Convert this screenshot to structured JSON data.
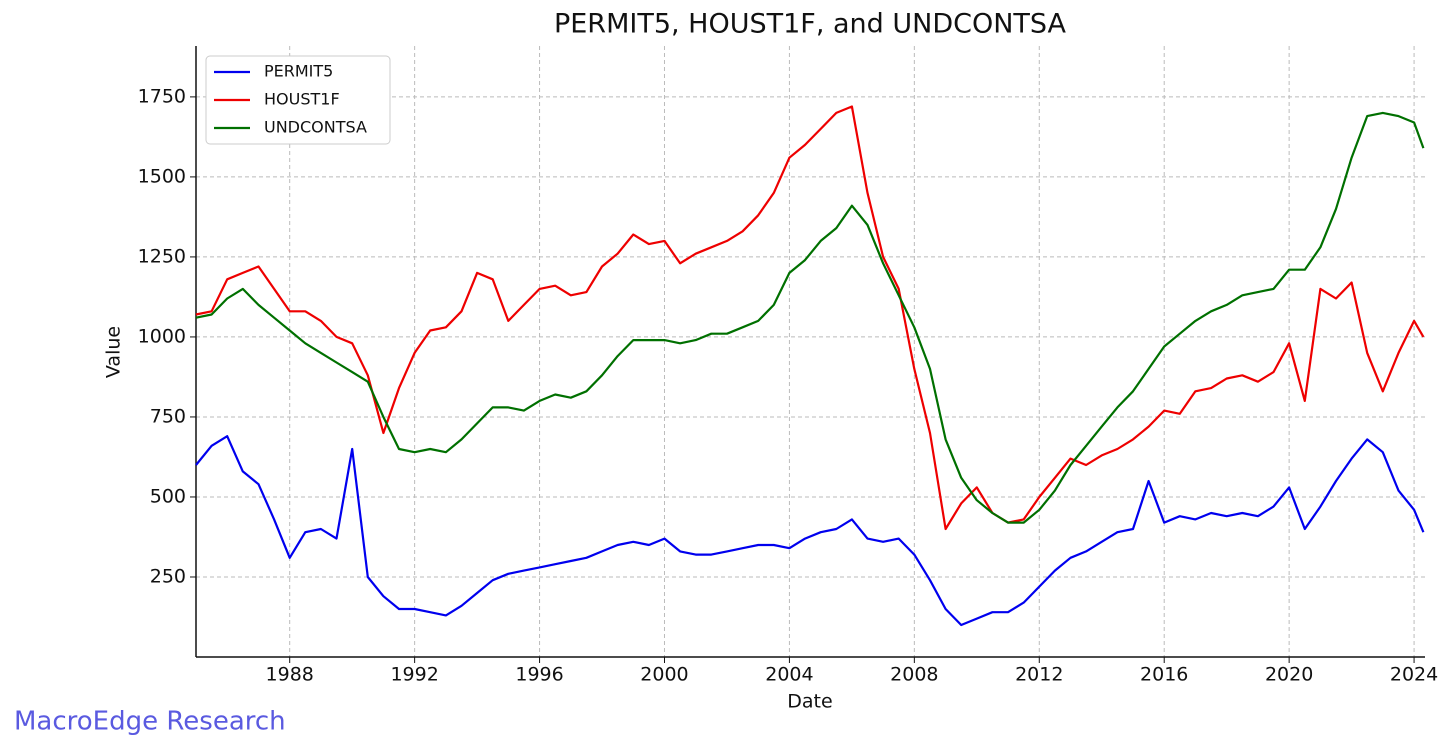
{
  "chart_data": {
    "type": "line",
    "title": "PERMIT5, HOUST1F, and UNDCONTSA",
    "x_label": "Date",
    "y_label": "Value",
    "watermark": "MacroEdge Research",
    "x": [
      1985.0,
      1985.5,
      1986.0,
      1986.5,
      1987.0,
      1987.5,
      1988.0,
      1988.5,
      1989.0,
      1989.5,
      1990.0,
      1990.5,
      1991.0,
      1991.5,
      1992.0,
      1992.5,
      1993.0,
      1993.5,
      1994.0,
      1994.5,
      1995.0,
      1995.5,
      1996.0,
      1996.5,
      1997.0,
      1997.5,
      1998.0,
      1998.5,
      1999.0,
      1999.5,
      2000.0,
      2000.5,
      2001.0,
      2001.5,
      2002.0,
      2002.5,
      2003.0,
      2003.5,
      2004.0,
      2004.5,
      2005.0,
      2005.5,
      2006.0,
      2006.5,
      2007.0,
      2007.5,
      2008.0,
      2008.5,
      2009.0,
      2009.5,
      2010.0,
      2010.5,
      2011.0,
      2011.5,
      2012.0,
      2012.5,
      2013.0,
      2013.5,
      2014.0,
      2014.5,
      2015.0,
      2015.5,
      2016.0,
      2016.5,
      2017.0,
      2017.5,
      2018.0,
      2018.5,
      2019.0,
      2019.5,
      2020.0,
      2020.5,
      2021.0,
      2021.5,
      2022.0,
      2022.5,
      2023.0,
      2023.5,
      2024.0,
      2024.3
    ],
    "series": [
      {
        "name": "PERMIT5",
        "color": "#0000ee",
        "values": [
          600,
          660,
          690,
          580,
          540,
          430,
          310,
          390,
          400,
          370,
          650,
          250,
          190,
          150,
          150,
          140,
          130,
          160,
          200,
          240,
          260,
          270,
          280,
          290,
          300,
          310,
          330,
          350,
          360,
          350,
          370,
          330,
          320,
          320,
          330,
          340,
          350,
          350,
          340,
          370,
          390,
          400,
          430,
          370,
          360,
          370,
          320,
          240,
          150,
          100,
          120,
          140,
          140,
          170,
          220,
          270,
          310,
          330,
          360,
          390,
          400,
          550,
          420,
          440,
          430,
          450,
          440,
          450,
          440,
          470,
          530,
          400,
          470,
          550,
          620,
          680,
          640,
          520,
          460,
          390
        ]
      },
      {
        "name": "HOUST1F",
        "color": "#ee0000",
        "values": [
          1070,
          1080,
          1180,
          1200,
          1220,
          1150,
          1080,
          1080,
          1050,
          1000,
          980,
          880,
          700,
          840,
          950,
          1020,
          1030,
          1080,
          1200,
          1180,
          1050,
          1100,
          1150,
          1160,
          1130,
          1140,
          1220,
          1260,
          1320,
          1290,
          1300,
          1230,
          1260,
          1280,
          1300,
          1330,
          1380,
          1450,
          1560,
          1600,
          1650,
          1700,
          1720,
          1450,
          1250,
          1150,
          900,
          700,
          400,
          480,
          530,
          450,
          420,
          430,
          500,
          560,
          620,
          600,
          630,
          650,
          680,
          720,
          770,
          760,
          830,
          840,
          870,
          880,
          860,
          890,
          980,
          800,
          1150,
          1120,
          1170,
          950,
          830,
          950,
          1050,
          1000
        ]
      },
      {
        "name": "UNDCONTSA",
        "color": "#007000",
        "values": [
          1060,
          1070,
          1120,
          1150,
          1100,
          1060,
          1020,
          980,
          950,
          920,
          890,
          860,
          750,
          650,
          640,
          650,
          640,
          680,
          730,
          780,
          780,
          770,
          800,
          820,
          810,
          830,
          880,
          940,
          990,
          990,
          990,
          980,
          990,
          1010,
          1010,
          1030,
          1050,
          1100,
          1200,
          1240,
          1300,
          1340,
          1410,
          1350,
          1230,
          1130,
          1030,
          900,
          680,
          560,
          490,
          450,
          420,
          420,
          460,
          520,
          600,
          660,
          720,
          780,
          830,
          900,
          970,
          1010,
          1050,
          1080,
          1100,
          1130,
          1140,
          1150,
          1210,
          1210,
          1280,
          1400,
          1560,
          1690,
          1700,
          1690,
          1670,
          1590
        ]
      }
    ],
    "xlim": [
      1985.0,
      2024.35
    ],
    "xticks": [
      1988,
      1992,
      1996,
      2000,
      2004,
      2008,
      2012,
      2016,
      2020,
      2024
    ],
    "ylim": [
      0,
      1909
    ],
    "yticks": [
      250,
      500,
      750,
      1000,
      1250,
      1500,
      1750
    ],
    "grid": true,
    "legend": "upper-left"
  }
}
